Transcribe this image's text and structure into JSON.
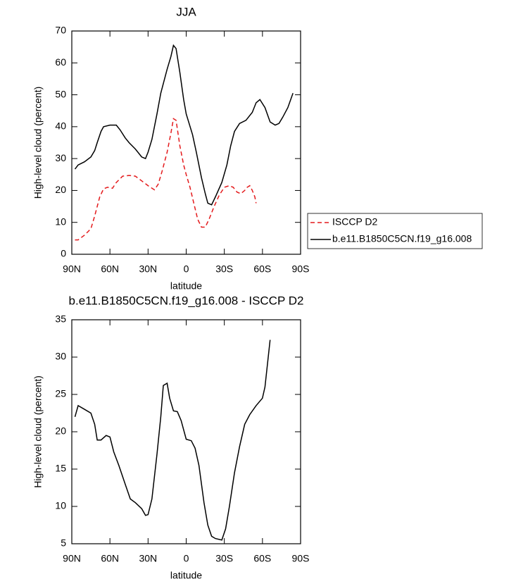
{
  "chart_data": [
    {
      "type": "line",
      "title": "JJA",
      "x_label": "latitude",
      "y_label": "High-level cloud (percent)",
      "xlim": [
        90,
        -90
      ],
      "xticks": [
        {
          "value": 90,
          "label": "90N"
        },
        {
          "value": 60,
          "label": "60N"
        },
        {
          "value": 30,
          "label": "30N"
        },
        0,
        {
          "value": -30,
          "label": "30S"
        },
        {
          "value": -60,
          "label": "60S"
        },
        {
          "value": -90,
          "label": "90S"
        }
      ],
      "ylim": [
        0,
        70
      ],
      "yticks": [
        0,
        10,
        20,
        30,
        40,
        50,
        60,
        70
      ],
      "legend": "right",
      "series": [
        {
          "name": "ISCCP D2",
          "color": "#e41a1c",
          "linestyle": "dashed",
          "x": [
            87.5,
            85,
            80,
            75,
            72,
            68,
            65,
            62,
            58,
            55,
            50,
            45,
            40,
            35,
            30,
            25,
            22,
            19,
            15,
            12,
            10,
            8,
            5,
            2,
            0,
            -3,
            -6,
            -9,
            -12,
            -15,
            -18,
            -22,
            -26,
            -30,
            -34,
            -37,
            -40,
            -43,
            -46,
            -48,
            -50,
            -52,
            -54,
            -55
          ],
          "values": [
            4.5,
            4.5,
            6,
            8,
            12,
            18,
            20.5,
            21,
            20.7,
            22.5,
            24.5,
            24.7,
            24.5,
            23,
            21.5,
            20.2,
            22,
            26,
            32,
            38,
            42.5,
            42,
            34,
            28,
            25,
            21,
            16,
            11,
            8.5,
            8.5,
            11,
            15,
            18.5,
            21,
            21.5,
            21,
            19.5,
            19,
            20,
            21,
            21.5,
            20,
            18,
            16
          ]
        },
        {
          "name": "b.e11.B1850C5CN.f19_g16.008",
          "color": "#000000",
          "linestyle": "solid",
          "x": [
            87.5,
            85,
            80,
            75,
            72,
            70,
            67,
            65,
            60,
            55,
            52,
            48,
            45,
            40,
            35,
            32,
            30,
            27,
            23,
            20,
            15,
            12,
            10,
            8,
            5,
            2,
            0,
            -5,
            -8,
            -12,
            -15,
            -17,
            -20,
            -23,
            -28,
            -32,
            -35,
            -38,
            -42,
            -47,
            -52,
            -55,
            -58,
            -62,
            -66,
            -70,
            -73,
            -76,
            -80,
            -84
          ],
          "values": [
            26.7,
            28,
            29,
            30.5,
            32.5,
            35,
            38.5,
            40,
            40.5,
            40.5,
            39,
            36.5,
            35,
            33,
            30.5,
            30,
            32,
            36,
            44,
            50.5,
            58,
            62,
            65.5,
            64.5,
            57,
            48.5,
            44,
            37.5,
            32,
            24,
            19,
            16,
            15.5,
            18,
            22.5,
            28,
            34,
            38.5,
            41,
            42,
            44.5,
            47.5,
            48.5,
            46,
            41.5,
            40.5,
            41,
            43,
            46,
            50.5
          ]
        }
      ]
    },
    {
      "type": "line",
      "title": "b.e11.B1850C5CN.f19_g16.008 - ISCCP D2",
      "x_label": "latitude",
      "y_label": "High-level cloud (percent)",
      "xlim": [
        90,
        -90
      ],
      "xticks": [
        {
          "value": 90,
          "label": "90N"
        },
        {
          "value": 60,
          "label": "60N"
        },
        {
          "value": 30,
          "label": "30N"
        },
        0,
        {
          "value": -30,
          "label": "30S"
        },
        {
          "value": -60,
          "label": "60S"
        },
        {
          "value": -90,
          "label": "90S"
        }
      ],
      "ylim": [
        5,
        35
      ],
      "yticks": [
        5,
        10,
        15,
        20,
        25,
        30,
        35
      ],
      "color": "#000000",
      "x": [
        87.5,
        85,
        80,
        75,
        72,
        70,
        67,
        63,
        60,
        57,
        53,
        48,
        44,
        40,
        35,
        32,
        30,
        27,
        23,
        20,
        18,
        15,
        13,
        10,
        7,
        4,
        0,
        -4,
        -7,
        -10,
        -14,
        -17,
        -20,
        -23,
        -28,
        -31,
        -34,
        -38,
        -42,
        -46,
        -50,
        -55,
        -60,
        -62,
        -66
      ],
      "values": [
        22,
        23.5,
        23,
        22.5,
        21,
        18.9,
        18.9,
        19.5,
        19.3,
        17.3,
        15.5,
        13,
        11,
        10.5,
        9.7,
        8.8,
        8.9,
        11,
        17,
        22,
        26.2,
        26.5,
        24.5,
        22.8,
        22.7,
        21.5,
        19,
        18.8,
        17.8,
        15.5,
        10.5,
        7.5,
        6,
        5.7,
        5.5,
        7,
        10,
        14.5,
        18,
        21,
        22.3,
        23.5,
        24.5,
        26,
        32.3
      ]
    }
  ]
}
